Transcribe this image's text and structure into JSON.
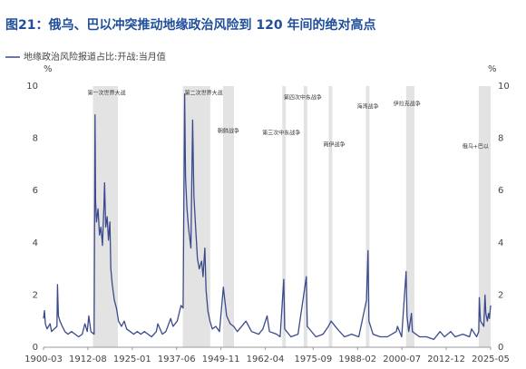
{
  "chart_data": {
    "type": "line",
    "title": "图21：俄乌、巴以冲突推动地缘政治风险到 120 年间的绝对高点",
    "y_unit": "%",
    "y2_unit": "%",
    "series": [
      {
        "name": "地缘政治风险报道占比:开战:当月值",
        "color": "#3b4a8c",
        "x": [
          "1900-03",
          "1900-06",
          "1900-09",
          "1901-03",
          "1902-01",
          "1902-06",
          "1903-03",
          "1903-12",
          "1904-02",
          "1904-05",
          "1904-10",
          "1905-06",
          "1906-03",
          "1907-01",
          "1908-01",
          "1909-01",
          "1910-01",
          "1911-01",
          "1911-10",
          "1912-06",
          "1912-11",
          "1913-06",
          "1914-05",
          "1914-08",
          "1914-10",
          "1915-01",
          "1915-06",
          "1915-11",
          "1916-04",
          "1916-09",
          "1917-02",
          "1917-04",
          "1917-08",
          "1918-01",
          "1918-05",
          "1918-10",
          "1919-01",
          "1919-06",
          "1920-01",
          "1920-08",
          "1921-03",
          "1922-01",
          "1922-10",
          "1923-06",
          "1924-06",
          "1925-06",
          "1926-06",
          "1927-06",
          "1928-06",
          "1929-06",
          "1930-06",
          "1931-10",
          "1932-03",
          "1933-06",
          "1934-06",
          "1935-10",
          "1936-06",
          "1937-08",
          "1938-09",
          "1939-04",
          "1939-09",
          "1939-12",
          "1940-05",
          "1940-10",
          "1941-06",
          "1941-12",
          "1942-04",
          "1942-10",
          "1943-04",
          "1943-10",
          "1944-06",
          "1944-11",
          "1945-05",
          "1945-09",
          "1946-03",
          "1946-10",
          "1947-06",
          "1948-06",
          "1949-06",
          "1950-07",
          "1950-12",
          "1951-06",
          "1952-06",
          "1953-06",
          "1954-06",
          "1956-11",
          "1958-06",
          "1960-06",
          "1961-08",
          "1962-10",
          "1963-06",
          "1965-06",
          "1966-06",
          "1967-06",
          "1967-09",
          "1969-06",
          "1971-06",
          "1973-10",
          "1974-01",
          "1976-06",
          "1978-06",
          "1979-12",
          "1980-09",
          "1982-06",
          "1984-06",
          "1986-06",
          "1988-06",
          "1990-08",
          "1991-01",
          "1991-04",
          "1992-06",
          "1994-06",
          "1996-06",
          "1998-12",
          "1999-04",
          "2000-06",
          "2001-09",
          "2001-12",
          "2002-06",
          "2003-03",
          "2003-06",
          "2005-06",
          "2007-06",
          "2009-06",
          "2011-03",
          "2012-06",
          "2014-03",
          "2015-06",
          "2017-08",
          "2019-06",
          "2020-01",
          "2021-06",
          "2022-01",
          "2022-03",
          "2022-07",
          "2023-01",
          "2023-06",
          "2023-10",
          "2024-01",
          "2024-06",
          "2024-10",
          "2025-01",
          "2025-05"
        ],
        "values": [
          1.1,
          1.4,
          0.9,
          0.7,
          0.9,
          0.6,
          0.7,
          0.8,
          2.4,
          1.2,
          1.0,
          0.8,
          0.6,
          0.5,
          0.6,
          0.5,
          0.4,
          0.5,
          0.9,
          0.6,
          1.2,
          0.6,
          0.5,
          8.9,
          5.6,
          4.8,
          5.3,
          4.3,
          4.6,
          3.9,
          5.4,
          6.3,
          4.6,
          5.0,
          4.1,
          4.8,
          3.0,
          2.4,
          1.8,
          1.5,
          1.0,
          0.8,
          1.0,
          0.7,
          0.6,
          0.5,
          0.6,
          0.5,
          0.6,
          0.5,
          0.4,
          0.6,
          0.9,
          0.5,
          0.6,
          1.1,
          0.8,
          1.0,
          1.6,
          1.5,
          9.7,
          6.5,
          5.3,
          4.6,
          3.8,
          8.7,
          5.8,
          4.6,
          3.4,
          3.0,
          3.3,
          2.7,
          3.8,
          2.2,
          1.4,
          1.0,
          0.7,
          0.8,
          0.6,
          2.3,
          1.8,
          1.2,
          0.9,
          0.8,
          0.6,
          1.0,
          0.6,
          0.5,
          0.7,
          1.2,
          0.6,
          0.5,
          0.4,
          2.6,
          0.7,
          0.4,
          0.5,
          2.7,
          0.8,
          0.4,
          0.5,
          0.8,
          1.0,
          0.7,
          0.4,
          0.5,
          0.4,
          1.8,
          3.7,
          1.0,
          0.5,
          0.4,
          0.4,
          0.6,
          0.8,
          0.4,
          2.9,
          1.2,
          0.6,
          1.3,
          0.6,
          0.4,
          0.4,
          0.3,
          0.6,
          0.4,
          0.6,
          0.4,
          0.5,
          0.4,
          0.7,
          0.4,
          0.6,
          1.9,
          1.0,
          0.9,
          0.8,
          2.0,
          1.3,
          1.0,
          1.3,
          1.1,
          1.6
        ]
      }
    ],
    "xlim": [
      "1900-03",
      "2025-05"
    ],
    "xticks": [
      "1900-03",
      "1912-08",
      "1925-01",
      "1937-06",
      "1949-11",
      "1962-04",
      "1975-09",
      "1988-02",
      "2000-07",
      "2012-12",
      "2025-05"
    ],
    "ylim": [
      0,
      10
    ],
    "yticks": [
      0,
      2,
      4,
      6,
      8,
      10
    ],
    "y2lim": [
      0,
      10
    ],
    "y2ticks": [
      0,
      2,
      4,
      6,
      8,
      10
    ],
    "band_color": "#e3e3e3",
    "annotations": [
      {
        "label": "第一次世界大战",
        "start": "1914-01",
        "end": "1921-01"
      },
      {
        "label": "第二次世界大战",
        "start": "1939-03",
        "end": "1946-11"
      },
      {
        "label": "朝鲜战争",
        "start": "1950-06",
        "end": "1953-07"
      },
      {
        "label": "第三次中东战争",
        "start": "1967-01",
        "end": "1968-01"
      },
      {
        "label": "第四次中东战争",
        "start": "1973-01",
        "end": "1974-01"
      },
      {
        "label": "两伊战争",
        "start": "1980-01",
        "end": "1981-01"
      },
      {
        "label": "海湾战争",
        "start": "1990-06",
        "end": "1991-06"
      },
      {
        "label": "伊拉克战争",
        "start": "2001-09",
        "end": "2004-01"
      },
      {
        "label": "俄乌+巴以",
        "start": "2022-01",
        "end": "2025-05"
      }
    ]
  }
}
